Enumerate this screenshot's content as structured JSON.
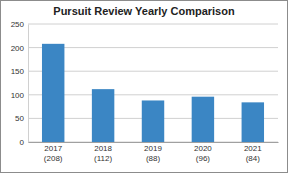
{
  "chart_data": {
    "type": "bar",
    "title": "Pursuit Review Yearly Comparison",
    "categories": [
      "2017\n(208)",
      "2018\n(112)",
      "2019\n(88)",
      "2020\n(96)",
      "2021\n(84)"
    ],
    "values": [
      208,
      112,
      88,
      96,
      84
    ],
    "color": "#3b86c4",
    "ylim": [
      0,
      250
    ],
    "yticks": [
      0,
      50,
      100,
      150,
      200,
      250
    ],
    "grid": true
  }
}
